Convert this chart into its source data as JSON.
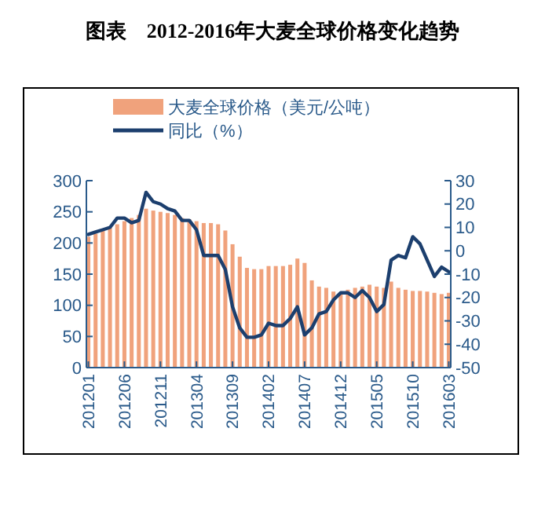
{
  "chart_data": {
    "type": "bar",
    "title": "图表　2012-2016年大麦全球价格变化趋势",
    "categories": [
      "201201",
      null,
      null,
      null,
      null,
      "201206",
      null,
      null,
      null,
      null,
      "201211",
      null,
      null,
      null,
      null,
      "201304",
      null,
      null,
      null,
      null,
      "201309",
      null,
      null,
      null,
      null,
      "201402",
      null,
      null,
      null,
      null,
      "201407",
      null,
      null,
      null,
      null,
      "201412",
      null,
      null,
      null,
      null,
      "201505",
      null,
      null,
      null,
      null,
      "201510",
      null,
      null,
      null,
      null,
      "201603"
    ],
    "series": [
      {
        "name": "大麦全球价格（美元/公吨）",
        "color": "#f0a27c",
        "values": [
          210,
          215,
          220,
          225,
          230,
          235,
          240,
          245,
          255,
          252,
          250,
          248,
          245,
          240,
          238,
          235,
          232,
          232,
          230,
          220,
          198,
          178,
          160,
          158,
          158,
          163,
          163,
          163,
          165,
          175,
          168,
          140,
          130,
          128,
          122,
          120,
          125,
          128,
          130,
          133,
          130,
          128,
          138,
          128,
          125,
          123,
          123,
          122,
          120,
          118,
          120
        ]
      },
      {
        "name": "同比（%）",
        "type": "line",
        "axis": "y2",
        "color": "#1c3f6e",
        "values": [
          7,
          8,
          9,
          10,
          14,
          14,
          12,
          13,
          25,
          21,
          20,
          18,
          17,
          13,
          13,
          9,
          -2,
          -2,
          -2,
          -8,
          -24,
          -33,
          -37,
          -37,
          -36,
          -31,
          -32,
          -32,
          -29,
          -24,
          -36,
          -33,
          -27,
          -26,
          -21,
          -18,
          -18,
          -20,
          -17,
          -20,
          -26,
          -23,
          -4,
          -2,
          -3,
          6,
          3,
          -4,
          -11,
          -7,
          -9
        ]
      }
    ],
    "ylim": [
      0,
      300
    ],
    "yticks": [
      0,
      50,
      100,
      150,
      200,
      250,
      300
    ],
    "y2lim": [
      -50,
      30
    ],
    "y2ticks": [
      -50,
      -40,
      -30,
      -20,
      -10,
      0,
      10,
      20,
      30
    ],
    "legend": "top",
    "grid": false
  }
}
